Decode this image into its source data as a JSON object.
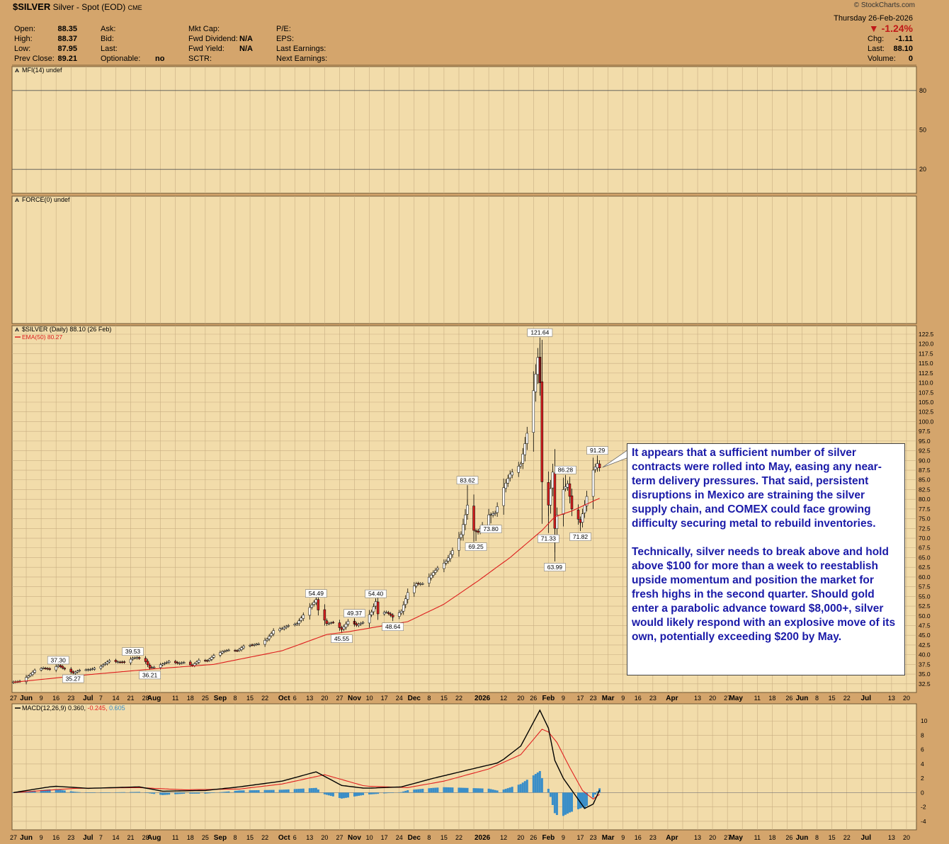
{
  "header": {
    "symbol": "$SILVER",
    "description": "Silver - Spot (EOD)",
    "exchange": "CME",
    "source": "© StockCharts.com",
    "date": "Thursday  26-Feb-2026",
    "change_pct": "▼ -1.24%",
    "fields": {
      "open": {
        "label": "Open:",
        "value": "88.35"
      },
      "high": {
        "label": "High:",
        "value": "88.37"
      },
      "low": {
        "label": "Low:",
        "value": "87.95"
      },
      "prev_close": {
        "label": "Prev Close:",
        "value": "89.21"
      },
      "ask": {
        "label": "Ask:",
        "value": ""
      },
      "bid": {
        "label": "Bid:",
        "value": ""
      },
      "last_mid": {
        "label": "Last:",
        "value": ""
      },
      "optionable": {
        "label": "Optionable:",
        "value": "no"
      },
      "mkt_cap": {
        "label": "Mkt Cap:",
        "value": ""
      },
      "fwd_dividend": {
        "label": "Fwd Dividend:",
        "value": "N/A"
      },
      "fwd_yield": {
        "label": "Fwd Yield:",
        "value": "N/A"
      },
      "sctr": {
        "label": "SCTR:",
        "value": ""
      },
      "pe": {
        "label": "P/E:",
        "value": ""
      },
      "eps": {
        "label": "EPS:",
        "value": ""
      },
      "last_earnings": {
        "label": "Last Earnings:",
        "value": ""
      },
      "next_earnings": {
        "label": "Next Earnings:",
        "value": ""
      },
      "chg": {
        "label": "Chg:",
        "value": "-1.11"
      },
      "last": {
        "label": "Last:",
        "value": "88.10"
      },
      "volume": {
        "label": "Volume:",
        "value": "0"
      }
    }
  },
  "callout": {
    "p1": "It appears that a sufficient number of silver contracts were rolled into May, easing any near-term delivery pressures. That said, persistent disruptions in Mexico are straining the silver supply chain, and COMEX could face growing difficulty securing metal to rebuild inventories.",
    "p2": "Technically, silver needs to break above and hold above $100 for more than a week to reestablish upside momentum and position the market for fresh highs in the second quarter. Should gold enter a parabolic advance toward $8,000+, silver would likely respond with an explosive move of its own, potentially exceeding $200 by May."
  },
  "colors": {
    "background": "#d4a56c",
    "panel": "#f2dcaa",
    "grid": "#c8ae82",
    "ema": "#dd1e1e",
    "up_candle": "#ffffff",
    "down_candle": "#d41e1e",
    "macd_line": "#000000",
    "signal_line": "#e02020",
    "histogram": "#3a8ec8"
  },
  "chart_data": [
    {
      "type": "line",
      "panel": "MFI",
      "title": "MFI(14) undef",
      "y_ticks": [
        80,
        50,
        20
      ],
      "ylim": [
        0,
        100
      ],
      "series": []
    },
    {
      "type": "line",
      "panel": "Force Index",
      "title": "FORCE(0) undef",
      "series": []
    },
    {
      "type": "candlestick",
      "panel": "Price",
      "title": "$SILVER (Daily) 88.10 (26 Feb)",
      "legend": [
        {
          "name": "EMA(50) 80.27",
          "color": "#dd1e1e"
        }
      ],
      "ylim": [
        31.0,
        122.5
      ],
      "y_ticks": [
        "122.5",
        "120.0",
        "117.5",
        "115.0",
        "112.5",
        "110.0",
        "107.5",
        "105.0",
        "102.5",
        "100.0",
        "97.5",
        "95.0",
        "92.5",
        "90.0",
        "87.5",
        "85.0",
        "82.5",
        "80.0",
        "77.5",
        "75.0",
        "72.5",
        "70.0",
        "67.5",
        "65.0",
        "62.5",
        "60.0",
        "57.5",
        "55.0",
        "52.5",
        "50.0",
        "47.5",
        "45.0",
        "42.5",
        "40.0",
        "37.5",
        "35.0",
        "32.5"
      ],
      "x_axis_labels": [
        "27",
        "Jun",
        "9",
        "16",
        "23",
        "Jul",
        "7",
        "14",
        "21",
        "28",
        "Aug",
        "11",
        "18",
        "25",
        "Sep",
        "8",
        "15",
        "22",
        "Oct",
        "6",
        "13",
        "20",
        "27",
        "Nov",
        "10",
        "17",
        "24",
        "Dec",
        "8",
        "15",
        "22",
        "2026",
        "12",
        "20",
        "26",
        "Feb",
        "9",
        "17",
        "23",
        "Mar",
        "9",
        "16",
        "23",
        "Apr",
        "13",
        "20",
        "27",
        "May",
        "11",
        "18",
        "26",
        "Jun",
        "8",
        "15",
        "22",
        "Jul",
        "13",
        "20"
      ],
      "close_anchors": [
        [
          "2025-05-27",
          33.0
        ],
        [
          "2025-05-30",
          33.1
        ],
        [
          "2025-06-03",
          34.5
        ],
        [
          "2025-06-06",
          36.0
        ],
        [
          "2025-06-10",
          36.6
        ],
        [
          "2025-06-13",
          36.2
        ],
        [
          "2025-06-17",
          37.2
        ],
        [
          "2025-06-20",
          36.3
        ],
        [
          "2025-06-24",
          35.3
        ],
        [
          "2025-06-27",
          36.0
        ],
        [
          "2025-07-02",
          36.2
        ],
        [
          "2025-07-07",
          37.0
        ],
        [
          "2025-07-11",
          38.5
        ],
        [
          "2025-07-14",
          38.2
        ],
        [
          "2025-07-18",
          38.0
        ],
        [
          "2025-07-22",
          39.1
        ],
        [
          "2025-07-24",
          39.3
        ],
        [
          "2025-07-28",
          38.2
        ],
        [
          "2025-07-30",
          36.6
        ],
        [
          "2025-08-01",
          36.8
        ],
        [
          "2025-08-05",
          37.6
        ],
        [
          "2025-08-08",
          38.3
        ],
        [
          "2025-08-12",
          37.8
        ],
        [
          "2025-08-15",
          38.0
        ],
        [
          "2025-08-19",
          37.2
        ],
        [
          "2025-08-22",
          38.6
        ],
        [
          "2025-08-26",
          38.4
        ],
        [
          "2025-08-29",
          39.8
        ],
        [
          "2025-09-02",
          40.8
        ],
        [
          "2025-09-05",
          41.2
        ],
        [
          "2025-09-09",
          41.0
        ],
        [
          "2025-09-12",
          42.2
        ],
        [
          "2025-09-16",
          42.5
        ],
        [
          "2025-09-19",
          42.8
        ],
        [
          "2025-09-23",
          44.0
        ],
        [
          "2025-09-26",
          46.2
        ],
        [
          "2025-09-30",
          46.8
        ],
        [
          "2025-10-03",
          47.5
        ],
        [
          "2025-10-07",
          48.0
        ],
        [
          "2025-10-10",
          50.2
        ],
        [
          "2025-10-14",
          52.8
        ],
        [
          "2025-10-16",
          54.2
        ],
        [
          "2025-10-17",
          51.5
        ],
        [
          "2025-10-21",
          48.0
        ],
        [
          "2025-10-24",
          48.3
        ],
        [
          "2025-10-28",
          46.5
        ],
        [
          "2025-10-31",
          48.6
        ],
        [
          "2025-11-04",
          47.6
        ],
        [
          "2025-11-07",
          48.3
        ],
        [
          "2025-11-11",
          51.0
        ],
        [
          "2025-11-13",
          53.7
        ],
        [
          "2025-11-14",
          50.5
        ],
        [
          "2025-11-18",
          51.0
        ],
        [
          "2025-11-21",
          49.7
        ],
        [
          "2025-11-25",
          51.2
        ],
        [
          "2025-11-28",
          56.0
        ],
        [
          "2025-12-02",
          58.2
        ],
        [
          "2025-12-05",
          58.3
        ],
        [
          "2025-12-09",
          60.5
        ],
        [
          "2025-12-12",
          62.3
        ],
        [
          "2025-12-16",
          64.0
        ],
        [
          "2025-12-19",
          66.8
        ],
        [
          "2025-12-23",
          71.0
        ],
        [
          "2025-12-26",
          78.5
        ],
        [
          "2025-12-29",
          72.0
        ],
        [
          "2025-12-31",
          71.5
        ],
        [
          "2026-01-05",
          76.0
        ],
        [
          "2026-01-08",
          76.5
        ],
        [
          "2026-01-12",
          83.0
        ],
        [
          "2026-01-15",
          86.5
        ],
        [
          "2026-01-20",
          89.0
        ],
        [
          "2026-01-23",
          97.0
        ],
        [
          "2026-01-26",
          108.0
        ],
        [
          "2026-01-28",
          116.5
        ],
        [
          "2026-01-29",
          110.0
        ],
        [
          "2026-01-30",
          84.5
        ],
        [
          "2026-02-02",
          78.5
        ],
        [
          "2026-02-04",
          87.0
        ],
        [
          "2026-02-05",
          72.5
        ],
        [
          "2026-02-06",
          76.0
        ],
        [
          "2026-02-09",
          82.5
        ],
        [
          "2026-02-11",
          84.0
        ],
        [
          "2026-02-13",
          77.5
        ],
        [
          "2026-02-17",
          74.0
        ],
        [
          "2026-02-19",
          78.5
        ],
        [
          "2026-02-23",
          87.5
        ],
        [
          "2026-02-25",
          89.21
        ],
        [
          "2026-02-26",
          88.1
        ]
      ],
      "ema50_anchors": [
        [
          "2025-05-27",
          32.9
        ],
        [
          "2025-06-30",
          34.8
        ],
        [
          "2025-07-31",
          36.3
        ],
        [
          "2025-08-29",
          37.5
        ],
        [
          "2025-09-30",
          41.0
        ],
        [
          "2025-10-21",
          45.2
        ],
        [
          "2025-10-31",
          45.9
        ],
        [
          "2025-11-28",
          48.5
        ],
        [
          "2025-12-15",
          53.0
        ],
        [
          "2025-12-31",
          59.0
        ],
        [
          "2026-01-15",
          65.0
        ],
        [
          "2026-01-30",
          72.0
        ],
        [
          "2026-02-05",
          75.5
        ],
        [
          "2026-02-13",
          77.0
        ],
        [
          "2026-02-26",
          80.27
        ]
      ],
      "annotations": [
        {
          "label": "37.30",
          "date": "2025-06-17",
          "value": 37.3,
          "pos": "above"
        },
        {
          "label": "35.27",
          "date": "2025-06-24",
          "value": 35.27,
          "pos": "below"
        },
        {
          "label": "39.53",
          "date": "2025-07-22",
          "value": 39.53,
          "pos": "above"
        },
        {
          "label": "36.21",
          "date": "2025-07-30",
          "value": 36.21,
          "pos": "below"
        },
        {
          "label": "54.49",
          "date": "2025-10-16",
          "value": 54.49,
          "pos": "above"
        },
        {
          "label": "45.55",
          "date": "2025-10-28",
          "value": 45.55,
          "pos": "below"
        },
        {
          "label": "49.37",
          "date": "2025-11-03",
          "value": 49.37,
          "pos": "above"
        },
        {
          "label": "54.40",
          "date": "2025-11-13",
          "value": 54.4,
          "pos": "above"
        },
        {
          "label": "48.64",
          "date": "2025-11-21",
          "value": 48.64,
          "pos": "below"
        },
        {
          "label": "83.62",
          "date": "2025-12-26",
          "value": 83.62,
          "pos": "above"
        },
        {
          "label": "69.25",
          "date": "2025-12-30",
          "value": 69.25,
          "pos": "below"
        },
        {
          "label": "73.80",
          "date": "2026-01-06",
          "value": 73.8,
          "pos": "below"
        },
        {
          "label": "121.64",
          "date": "2026-01-29",
          "value": 121.64,
          "pos": "above"
        },
        {
          "label": "71.33",
          "date": "2026-02-02",
          "value": 71.33,
          "pos": "below"
        },
        {
          "label": "63.99",
          "date": "2026-02-05",
          "value": 63.99,
          "pos": "below"
        },
        {
          "label": "86.28",
          "date": "2026-02-10",
          "value": 86.28,
          "pos": "above"
        },
        {
          "label": "71.82",
          "date": "2026-02-17",
          "value": 71.82,
          "pos": "below"
        },
        {
          "label": "91.29",
          "date": "2026-02-25",
          "value": 91.29,
          "pos": "above"
        }
      ]
    },
    {
      "type": "line",
      "panel": "MACD",
      "title": "MACD(12,26,9) 0.360, -0.245, 0.605",
      "legend_values": {
        "macd": "0.360",
        "signal": "-0.245",
        "histogram": "0.605"
      },
      "ylim": [
        -4.8,
        12
      ],
      "y_ticks": [
        "10",
        "8",
        "6",
        "4",
        "2",
        "0",
        "-2",
        "-4"
      ],
      "macd_anchors": [
        [
          "2025-05-27",
          0.0
        ],
        [
          "2025-06-15",
          0.9
        ],
        [
          "2025-07-01",
          0.6
        ],
        [
          "2025-07-25",
          0.8
        ],
        [
          "2025-08-05",
          0.2
        ],
        [
          "2025-08-25",
          0.3
        ],
        [
          "2025-09-10",
          0.8
        ],
        [
          "2025-09-30",
          1.6
        ],
        [
          "2025-10-16",
          2.9
        ],
        [
          "2025-10-28",
          1.0
        ],
        [
          "2025-11-08",
          0.6
        ],
        [
          "2025-11-25",
          0.8
        ],
        [
          "2025-12-10",
          2.0
        ],
        [
          "2025-12-31",
          3.5
        ],
        [
          "2026-01-10",
          4.2
        ],
        [
          "2026-01-20",
          6.5
        ],
        [
          "2026-01-29",
          11.5
        ],
        [
          "2026-02-02",
          9.0
        ],
        [
          "2026-02-05",
          4.5
        ],
        [
          "2026-02-09",
          2.0
        ],
        [
          "2026-02-13",
          0.3
        ],
        [
          "2026-02-19",
          -2.2
        ],
        [
          "2026-02-23",
          -1.6
        ],
        [
          "2026-02-26",
          0.36
        ]
      ],
      "signal_anchors": [
        [
          "2025-05-27",
          0.0
        ],
        [
          "2025-06-25",
          0.6
        ],
        [
          "2025-07-25",
          0.7
        ],
        [
          "2025-08-15",
          0.4
        ],
        [
          "2025-09-10",
          0.5
        ],
        [
          "2025-09-30",
          1.2
        ],
        [
          "2025-10-20",
          2.5
        ],
        [
          "2025-11-08",
          0.9
        ],
        [
          "2025-11-28",
          0.7
        ],
        [
          "2025-12-15",
          1.6
        ],
        [
          "2026-01-05",
          3.3
        ],
        [
          "2026-01-20",
          5.3
        ],
        [
          "2026-01-31",
          9.2
        ],
        [
          "2026-02-06",
          7.0
        ],
        [
          "2026-02-12",
          3.5
        ],
        [
          "2026-02-18",
          0.3
        ],
        [
          "2026-02-23",
          -0.9
        ],
        [
          "2026-02-26",
          -0.245
        ]
      ]
    }
  ]
}
